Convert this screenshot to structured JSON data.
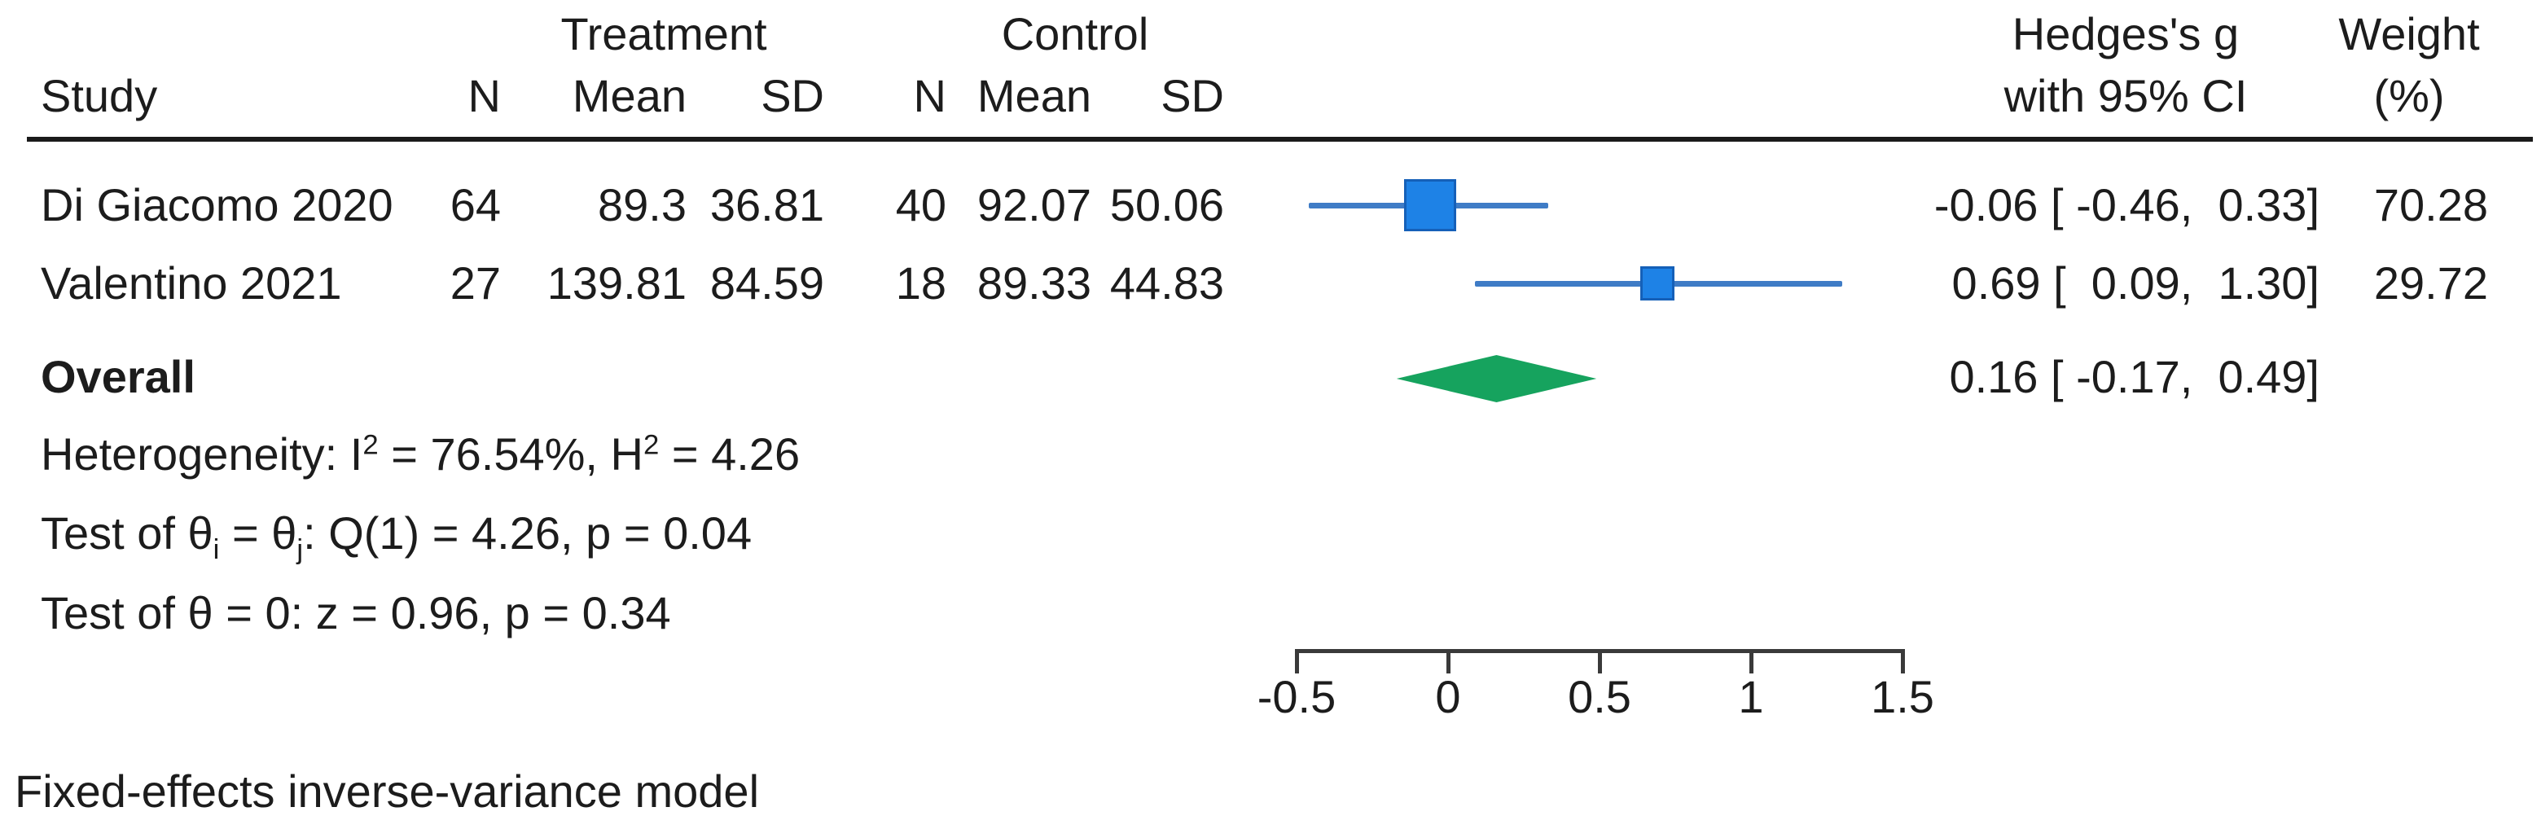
{
  "header": {
    "study": "Study",
    "treatment": "Treatment",
    "control": "Control",
    "col_n": "N",
    "col_mean": "Mean",
    "col_sd": "SD",
    "effect_l1": "Hedges's g",
    "effect_l2": "with 95% CI",
    "weight_l1": "Weight",
    "weight_l2": "(%)"
  },
  "rows": [
    {
      "study": "Di Giacomo 2020",
      "t_n": "64",
      "t_mean": "89.3",
      "t_sd": "36.81",
      "c_n": "40",
      "c_mean": "92.07",
      "c_sd": "50.06",
      "effect_ci": "-0.06 [ -0.46,  0.33]",
      "weight": "70.28"
    },
    {
      "study": "Valentino 2021",
      "t_n": "27",
      "t_mean": "139.81",
      "t_sd": "84.59",
      "c_n": "18",
      "c_mean": "89.33",
      "c_sd": "44.83",
      "effect_ci": "0.69 [  0.09,  1.30]",
      "weight": "29.72"
    }
  ],
  "overall": {
    "label": "Overall",
    "effect_ci": "0.16 [ -0.17,  0.49]"
  },
  "stats": {
    "heterogeneity_runs": [
      {
        "t": "Heterogeneity: I"
      },
      {
        "t": "2",
        "s": "sup"
      },
      {
        "t": " = 76.54%, H"
      },
      {
        "t": "2",
        "s": "sup"
      },
      {
        "t": " = 4.26"
      }
    ],
    "test_between_runs": [
      {
        "t": "Test of θ"
      },
      {
        "t": "i",
        "s": "sub"
      },
      {
        "t": " = θ"
      },
      {
        "t": "j",
        "s": "sub"
      },
      {
        "t": ": Q(1) = 4.26, p = 0.04"
      }
    ],
    "test_overall": "Test of θ = 0: z = 0.96, p = 0.34"
  },
  "axis_labels": [
    "-0.5",
    "0",
    "0.5",
    "1",
    "1.5"
  ],
  "footer": {
    "model": "Fixed-effects inverse-variance model"
  },
  "colors": {
    "marker_fill": "#1e82e6",
    "marker_border": "#1560b8",
    "ci_line": "#3f7cc6",
    "diamond_fill": "#16a35e",
    "axis": "#3a3a3a",
    "text": "#1c1c1c"
  },
  "chart_data": {
    "type": "forest",
    "effect_measure": "Hedges's g",
    "ci_level": "95% CI",
    "model": "Fixed-effects inverse-variance model",
    "xaxis": {
      "ticks": [
        -0.5,
        0,
        0.5,
        1,
        1.5
      ],
      "range": [
        -0.5,
        1.5
      ]
    },
    "studies": [
      {
        "study": "Di Giacomo 2020",
        "treatment": {
          "n": 64,
          "mean": 89.3,
          "sd": 36.81
        },
        "control": {
          "n": 40,
          "mean": 92.07,
          "sd": 50.06
        },
        "effect": -0.06,
        "ci_low": -0.46,
        "ci_high": 0.33,
        "weight_pct": 70.28
      },
      {
        "study": "Valentino 2021",
        "treatment": {
          "n": 27,
          "mean": 139.81,
          "sd": 84.59
        },
        "control": {
          "n": 18,
          "mean": 89.33,
          "sd": 44.83
        },
        "effect": 0.69,
        "ci_low": 0.09,
        "ci_high": 1.3,
        "weight_pct": 29.72
      }
    ],
    "overall": {
      "effect": 0.16,
      "ci_low": -0.17,
      "ci_high": 0.49
    },
    "heterogeneity": {
      "I2_pct": 76.54,
      "H2": 4.26,
      "Q": 4.26,
      "Q_df": 1,
      "p_Q": 0.04,
      "z": 0.96,
      "p_z": 0.34
    }
  }
}
